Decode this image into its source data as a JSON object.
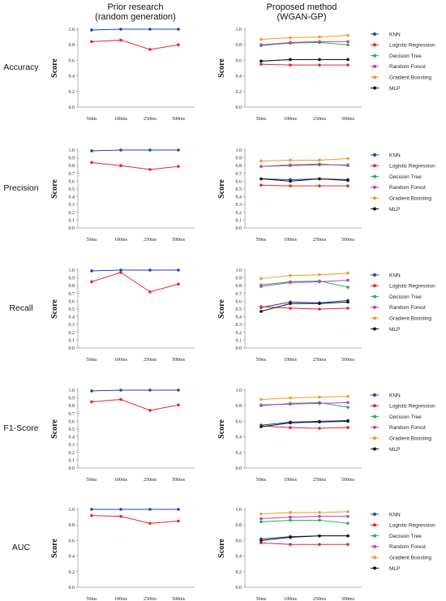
{
  "headers": {
    "left_line1": "Prior research",
    "left_line2": "(random generation)",
    "right_line1": "Proposed method",
    "right_line2": "(WGAN-GP)"
  },
  "y_axis_title": "Score",
  "colors": {
    "KNN": "#1f3fc8",
    "Logistic Regression": "#e8262b",
    "Decision Tree": "#22b24c",
    "Random Forest": "#c23ac9",
    "Gradient Boosting": "#f39a1e",
    "MLP": "#111111"
  },
  "chart_data": [
    {
      "type": "line",
      "metric": "Accuracy",
      "method": "Prior research (random generation)",
      "x": [
        "50ms",
        "100ms",
        "250ms",
        "500ms"
      ],
      "ylim": [
        0,
        1.0
      ],
      "yticks": [
        "0.0",
        "0.2",
        "0.4",
        "0.6",
        "0.8",
        "1.0"
      ],
      "series": [
        {
          "name": "KNN",
          "values": [
            0.99,
            1.0,
            1.0,
            1.0
          ]
        },
        {
          "name": "Logistic Regression",
          "values": [
            0.84,
            0.86,
            0.74,
            0.8
          ]
        }
      ]
    },
    {
      "type": "line",
      "metric": "Accuracy",
      "method": "Proposed method (WGAN-GP)",
      "x": [
        "50ms",
        "100ms",
        "250ms",
        "500ms"
      ],
      "ylim": [
        0,
        1.0
      ],
      "yticks": [
        "0.0",
        "0.2",
        "0.4",
        "0.6",
        "0.8",
        "1.0"
      ],
      "legend": [
        "KNN",
        "Logistic Regression",
        "Decision Tree",
        "Random Forest",
        "Gradient Boosting",
        "MLP"
      ],
      "series": [
        {
          "name": "KNN",
          "values": [
            0.59,
            0.61,
            0.61,
            0.61
          ]
        },
        {
          "name": "Logistic Regression",
          "values": [
            0.55,
            0.54,
            0.54,
            0.54
          ]
        },
        {
          "name": "Decision Tree",
          "values": [
            0.79,
            0.82,
            0.83,
            0.8
          ]
        },
        {
          "name": "Random Forest",
          "values": [
            0.8,
            0.83,
            0.84,
            0.84
          ]
        },
        {
          "name": "Gradient Boosting",
          "values": [
            0.87,
            0.89,
            0.9,
            0.92
          ]
        },
        {
          "name": "MLP",
          "values": [
            0.59,
            0.61,
            0.61,
            0.61
          ]
        }
      ]
    },
    {
      "type": "line",
      "metric": "Precision",
      "method": "Prior research (random generation)",
      "x": [
        "50ms",
        "100ms",
        "250ms",
        "500ms"
      ],
      "ylim": [
        0,
        1.0
      ],
      "yticks": [
        "0.0",
        "0.1",
        "0.2",
        "0.3",
        "0.4",
        "0.5",
        "0.6",
        "0.7",
        "0.8",
        "0.9",
        "1.0"
      ],
      "series": [
        {
          "name": "KNN",
          "values": [
            0.99,
            1.0,
            1.0,
            1.0
          ]
        },
        {
          "name": "Logistic Regression",
          "values": [
            0.84,
            0.8,
            0.75,
            0.79
          ]
        }
      ]
    },
    {
      "type": "line",
      "metric": "Precision",
      "method": "Proposed method (WGAN-GP)",
      "x": [
        "50ms",
        "100ms",
        "250ms",
        "500ms"
      ],
      "ylim": [
        0,
        1.0
      ],
      "yticks": [
        "0.0",
        "0.1",
        "0.2",
        "0.3",
        "0.4",
        "0.5",
        "0.6",
        "0.7",
        "0.8",
        "0.9",
        "1.0"
      ],
      "legend": [
        "KNN",
        "Logistic Regression",
        "Decision Tree",
        "Random Forest",
        "Gradient Boosting",
        "MLP"
      ],
      "series": [
        {
          "name": "KNN",
          "values": [
            0.63,
            0.62,
            0.63,
            0.62
          ]
        },
        {
          "name": "Logistic Regression",
          "values": [
            0.55,
            0.54,
            0.54,
            0.54
          ]
        },
        {
          "name": "Decision Tree",
          "values": [
            0.79,
            0.81,
            0.82,
            0.8
          ]
        },
        {
          "name": "Random Forest",
          "values": [
            0.79,
            0.8,
            0.81,
            0.81
          ]
        },
        {
          "name": "Gradient Boosting",
          "values": [
            0.86,
            0.87,
            0.87,
            0.89
          ]
        },
        {
          "name": "MLP",
          "values": [
            0.63,
            0.6,
            0.63,
            0.61
          ]
        }
      ]
    },
    {
      "type": "line",
      "metric": "Recall",
      "method": "Prior research (random generation)",
      "x": [
        "50ms",
        "100ms",
        "250ms",
        "500ms"
      ],
      "ylim": [
        0,
        1.0
      ],
      "yticks": [
        "0.0",
        "0.1",
        "0.2",
        "0.3",
        "0.4",
        "0.5",
        "0.6",
        "0.7",
        "0.8",
        "0.9",
        "1.0"
      ],
      "series": [
        {
          "name": "KNN",
          "values": [
            0.99,
            1.0,
            1.0,
            1.0
          ]
        },
        {
          "name": "Logistic Regression",
          "values": [
            0.85,
            0.97,
            0.72,
            0.82
          ]
        }
      ]
    },
    {
      "type": "line",
      "metric": "Recall",
      "method": "Proposed method (WGAN-GP)",
      "x": [
        "50ms",
        "100ms",
        "250ms",
        "500ms"
      ],
      "ylim": [
        0,
        1.0
      ],
      "yticks": [
        "0.0",
        "0.1",
        "0.2",
        "0.3",
        "0.4",
        "0.5",
        "0.6",
        "0.7",
        "0.8",
        "0.9",
        "1.0"
      ],
      "legend": [
        "KNN",
        "Logistic Regression",
        "Decision Tree",
        "Random Forest",
        "Gradient Boosting",
        "MLP"
      ],
      "series": [
        {
          "name": "KNN",
          "values": [
            0.52,
            0.59,
            0.58,
            0.61
          ]
        },
        {
          "name": "Logistic Regression",
          "values": [
            0.53,
            0.51,
            0.5,
            0.51
          ]
        },
        {
          "name": "Decision Tree",
          "values": [
            0.81,
            0.85,
            0.86,
            0.78
          ]
        },
        {
          "name": "Random Forest",
          "values": [
            0.79,
            0.84,
            0.85,
            0.87
          ]
        },
        {
          "name": "Gradient Boosting",
          "values": [
            0.89,
            0.93,
            0.94,
            0.96
          ]
        },
        {
          "name": "MLP",
          "values": [
            0.47,
            0.57,
            0.57,
            0.59
          ]
        }
      ]
    },
    {
      "type": "line",
      "metric": "F1-Score",
      "method": "Prior research (random generation)",
      "x": [
        "50ms",
        "100ms",
        "250ms",
        "500ms"
      ],
      "ylim": [
        0,
        1.0
      ],
      "yticks": [
        "0.0",
        "0.1",
        "0.2",
        "0.3",
        "0.4",
        "0.5",
        "0.6",
        "0.7",
        "0.8",
        "0.9",
        "1.0"
      ],
      "series": [
        {
          "name": "KNN",
          "values": [
            0.99,
            1.0,
            1.0,
            1.0
          ]
        },
        {
          "name": "Logistic Regression",
          "values": [
            0.85,
            0.88,
            0.74,
            0.81
          ]
        }
      ]
    },
    {
      "type": "line",
      "metric": "F1-Score",
      "method": "Proposed method (WGAN-GP)",
      "x": [
        "50ms",
        "100ms",
        "250ms",
        "500ms"
      ],
      "ylim": [
        0,
        1.0
      ],
      "yticks": [
        "0.0",
        "0.2",
        "0.4",
        "0.6",
        "0.8",
        "1.0"
      ],
      "legend": [
        "KNN",
        "Logistic Regression",
        "Decision Tree",
        "Random Forest",
        "Gradient Boosting",
        "MLP"
      ],
      "series": [
        {
          "name": "KNN",
          "values": [
            0.55,
            0.59,
            0.6,
            0.61
          ]
        },
        {
          "name": "Logistic Regression",
          "values": [
            0.54,
            0.52,
            0.51,
            0.52
          ]
        },
        {
          "name": "Decision Tree",
          "values": [
            0.8,
            0.83,
            0.84,
            0.78
          ]
        },
        {
          "name": "Random Forest",
          "values": [
            0.81,
            0.82,
            0.83,
            0.84
          ]
        },
        {
          "name": "Gradient Boosting",
          "values": [
            0.88,
            0.9,
            0.91,
            0.92
          ]
        },
        {
          "name": "MLP",
          "values": [
            0.53,
            0.58,
            0.59,
            0.6
          ]
        }
      ]
    },
    {
      "type": "line",
      "metric": "AUC",
      "method": "Prior research (random generation)",
      "x": [
        "50ms",
        "100ms",
        "250ms",
        "500ms"
      ],
      "ylim": [
        0,
        1.0
      ],
      "yticks": [
        "0.0",
        "0.2",
        "0.4",
        "0.6",
        "0.8",
        "1.0"
      ],
      "series": [
        {
          "name": "KNN",
          "values": [
            1.0,
            1.0,
            1.0,
            1.0
          ]
        },
        {
          "name": "Logistic Regression",
          "values": [
            0.92,
            0.91,
            0.82,
            0.85
          ]
        }
      ]
    },
    {
      "type": "line",
      "metric": "AUC",
      "method": "Proposed method (WGAN-GP)",
      "x": [
        "50ms",
        "100ms",
        "250ms",
        "500ms"
      ],
      "ylim": [
        0,
        1.0
      ],
      "yticks": [
        "0.0",
        "0.2",
        "0.4",
        "0.6",
        "0.8",
        "1.0"
      ],
      "legend": [
        "KNN",
        "Logistic Regression",
        "Decision Tree",
        "Random Forest",
        "Gradient Boosting",
        "MLP"
      ],
      "series": [
        {
          "name": "KNN",
          "values": [
            0.62,
            0.65,
            0.66,
            0.66
          ]
        },
        {
          "name": "Logistic Regression",
          "values": [
            0.57,
            0.55,
            0.55,
            0.55
          ]
        },
        {
          "name": "Decision Tree",
          "values": [
            0.84,
            0.86,
            0.86,
            0.82
          ]
        },
        {
          "name": "Random Forest",
          "values": [
            0.88,
            0.9,
            0.91,
            0.91
          ]
        },
        {
          "name": "Gradient Boosting",
          "values": [
            0.94,
            0.96,
            0.96,
            0.97
          ]
        },
        {
          "name": "MLP",
          "values": [
            0.6,
            0.64,
            0.66,
            0.66
          ]
        }
      ]
    }
  ]
}
